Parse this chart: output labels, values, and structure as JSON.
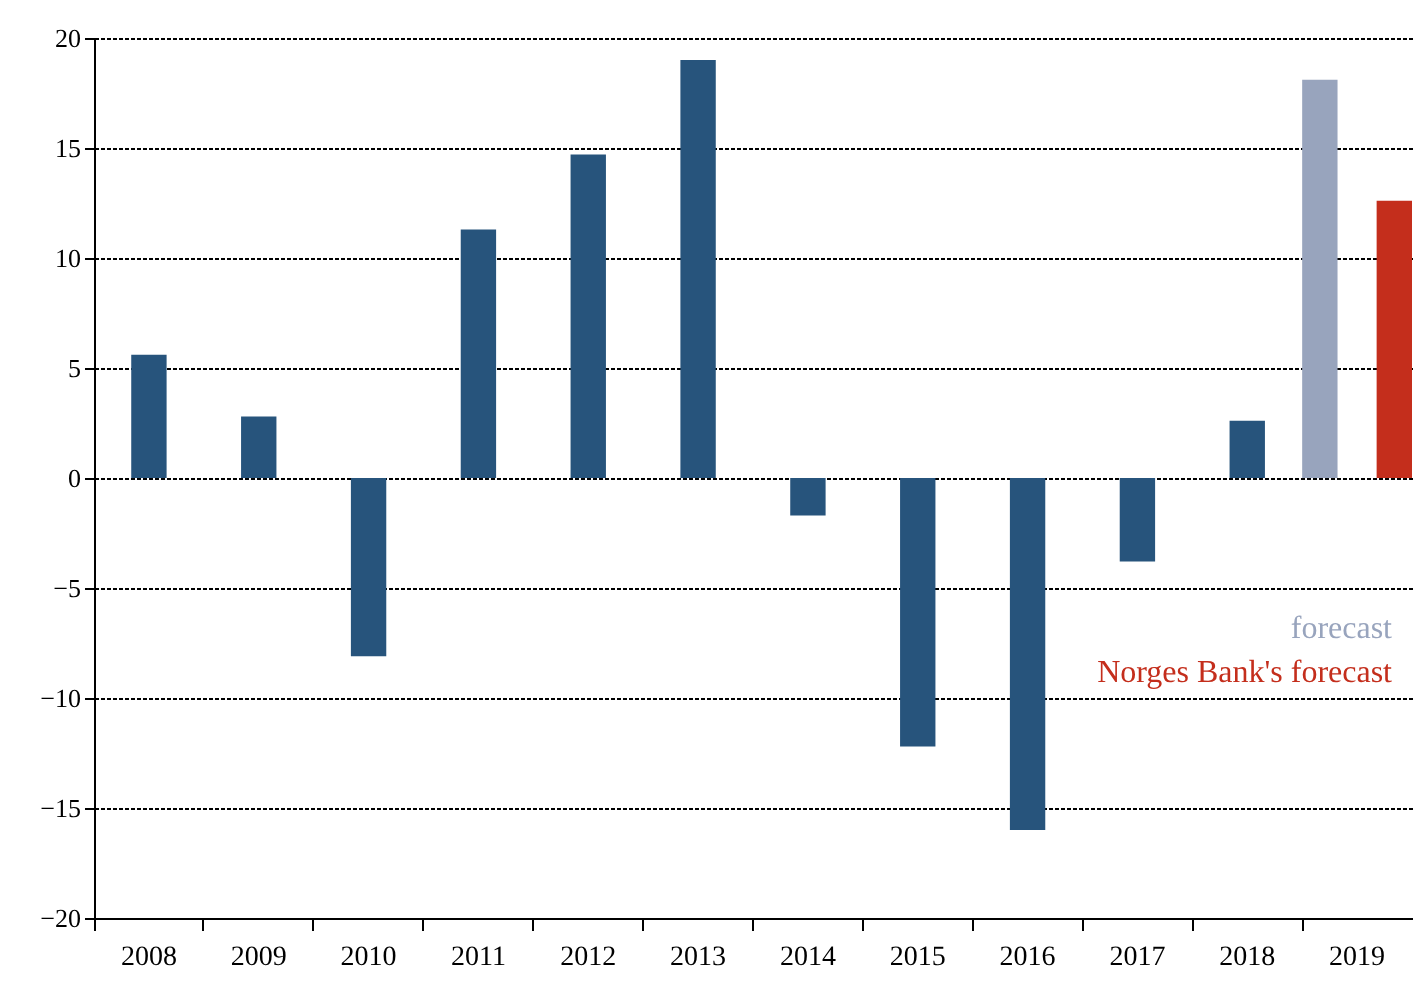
{
  "chart_data": {
    "type": "bar",
    "categories": [
      "2008",
      "2009",
      "2010",
      "2011",
      "2012",
      "2013",
      "2014",
      "2015",
      "2016",
      "2017",
      "2018",
      "2019"
    ],
    "series": [
      {
        "color": "#27547c",
        "values": [
          5.6,
          2.8,
          -8.1,
          11.3,
          14.7,
          19.0,
          -1.7,
          -12.2,
          -16.0,
          -3.8,
          2.6,
          null
        ]
      },
      {
        "name": "forecast",
        "color": "#98a4bd",
        "values": [
          null,
          null,
          null,
          null,
          null,
          null,
          null,
          null,
          null,
          null,
          null,
          18.1
        ]
      },
      {
        "name": "Norges Bank's forecast",
        "color": "#c42e1c",
        "values": [
          null,
          null,
          null,
          null,
          null,
          null,
          null,
          null,
          null,
          null,
          null,
          12.6
        ]
      }
    ],
    "ylim": [
      -20,
      20
    ],
    "yticks": [
      -20,
      -15,
      -10,
      -5,
      0,
      5,
      10,
      15,
      20
    ],
    "grid": "y",
    "legend": "right"
  }
}
